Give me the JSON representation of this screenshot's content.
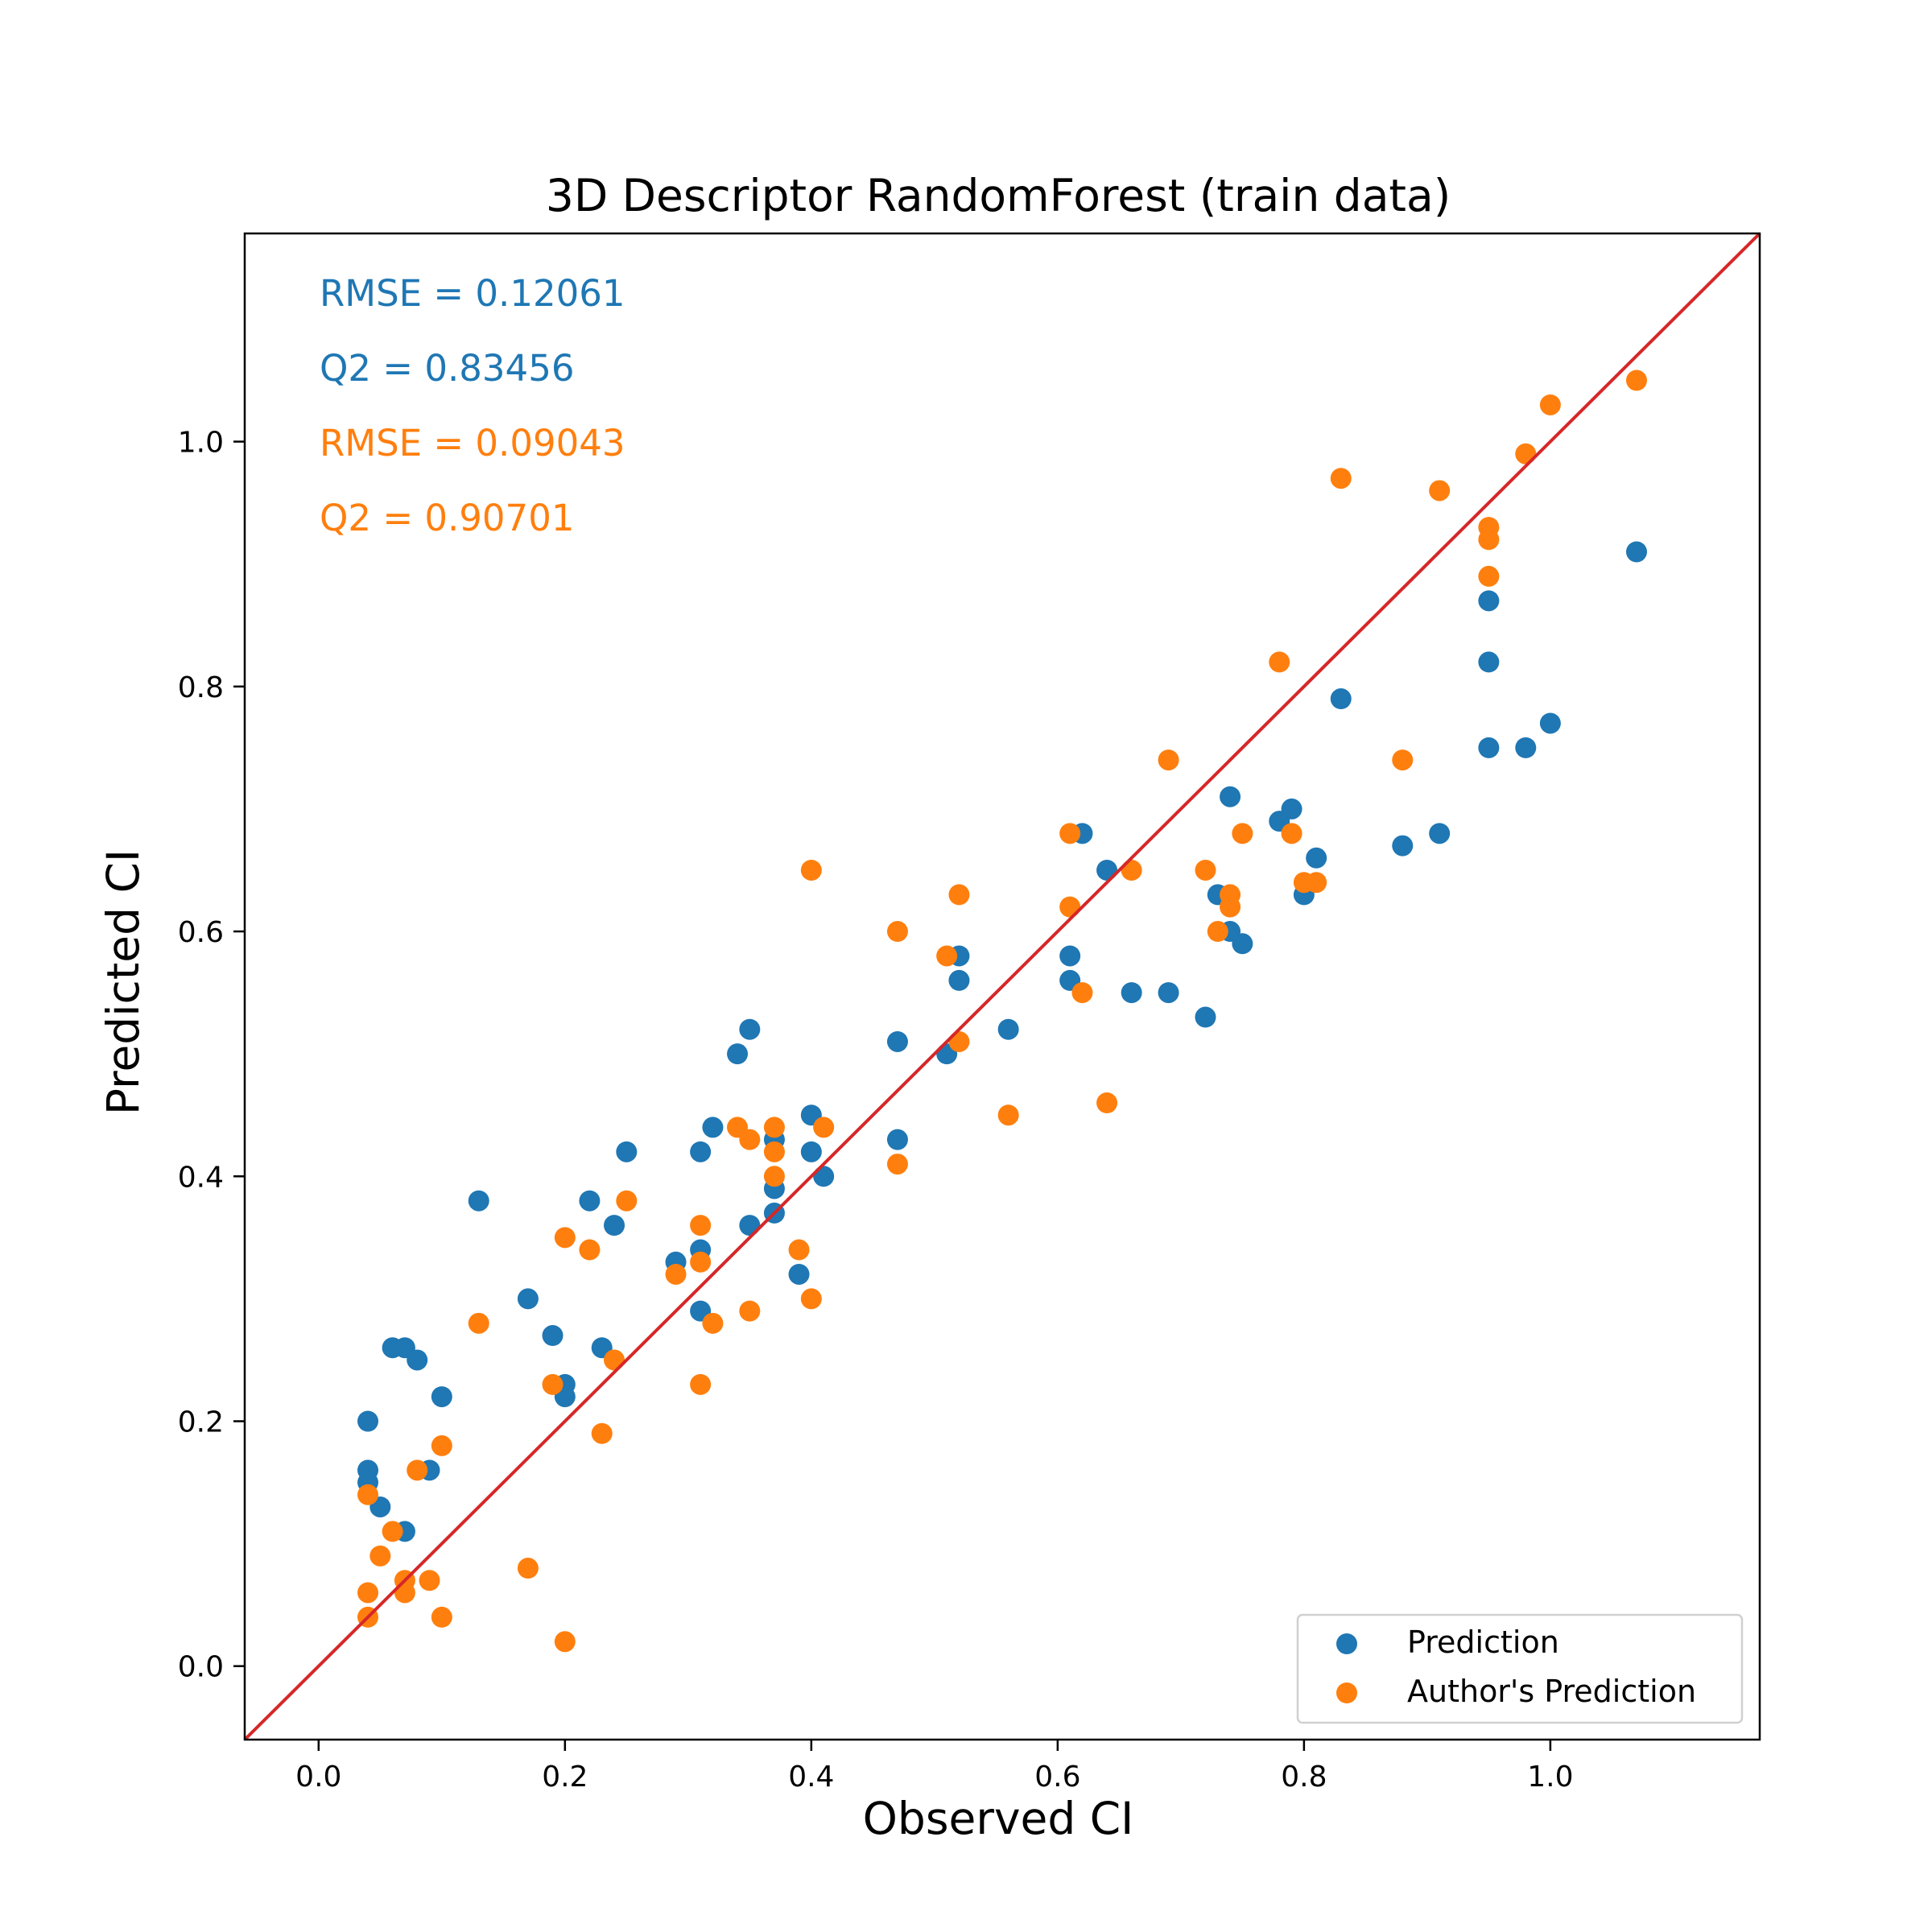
{
  "chart_data": {
    "type": "scatter",
    "title": "3D Descriptor RandomForest (train data)",
    "xlabel": "Observed CI",
    "ylabel": "Predicted CI",
    "xlim": [
      -0.06,
      1.17
    ],
    "ylim": [
      -0.06,
      1.17
    ],
    "x_ticks": [
      0.0,
      0.2,
      0.4,
      0.6,
      0.8,
      1.0
    ],
    "y_ticks": [
      0.0,
      0.2,
      0.4,
      0.6,
      0.8,
      1.0
    ],
    "x_tick_labels": [
      "0.0",
      "0.2",
      "0.4",
      "0.6",
      "0.8",
      "1.0"
    ],
    "y_tick_labels": [
      "0.0",
      "0.2",
      "0.4",
      "0.6",
      "0.8",
      "1.0"
    ],
    "grid": false,
    "legend_position": "bottom-right",
    "reference_line": {
      "slope": 1,
      "intercept": 0,
      "color": "#d62728"
    },
    "annotations": [
      {
        "text": "RMSE = 0.12061",
        "color": "#1f77b4"
      },
      {
        "text": "Q2 = 0.83456",
        "color": "#1f77b4"
      },
      {
        "text": "RMSE = 0.09043",
        "color": "#ff7f0e"
      },
      {
        "text": "Q2 = 0.90701",
        "color": "#ff7f0e"
      }
    ],
    "series": [
      {
        "name": "Prediction",
        "color": "#1f77b4",
        "points": [
          [
            0.04,
            0.2
          ],
          [
            0.04,
            0.16
          ],
          [
            0.04,
            0.15
          ],
          [
            0.05,
            0.13
          ],
          [
            0.06,
            0.26
          ],
          [
            0.07,
            0.26
          ],
          [
            0.07,
            0.11
          ],
          [
            0.08,
            0.25
          ],
          [
            0.09,
            0.16
          ],
          [
            0.1,
            0.22
          ],
          [
            0.13,
            0.38
          ],
          [
            0.17,
            0.3
          ],
          [
            0.19,
            0.27
          ],
          [
            0.2,
            0.23
          ],
          [
            0.2,
            0.22
          ],
          [
            0.22,
            0.38
          ],
          [
            0.23,
            0.26
          ],
          [
            0.24,
            0.36
          ],
          [
            0.25,
            0.42
          ],
          [
            0.29,
            0.33
          ],
          [
            0.31,
            0.42
          ],
          [
            0.31,
            0.34
          ],
          [
            0.31,
            0.29
          ],
          [
            0.32,
            0.44
          ],
          [
            0.34,
            0.5
          ],
          [
            0.35,
            0.52
          ],
          [
            0.35,
            0.36
          ],
          [
            0.37,
            0.43
          ],
          [
            0.37,
            0.39
          ],
          [
            0.37,
            0.37
          ],
          [
            0.39,
            0.32
          ],
          [
            0.4,
            0.45
          ],
          [
            0.4,
            0.42
          ],
          [
            0.41,
            0.4
          ],
          [
            0.47,
            0.51
          ],
          [
            0.47,
            0.43
          ],
          [
            0.51,
            0.5
          ],
          [
            0.52,
            0.58
          ],
          [
            0.52,
            0.56
          ],
          [
            0.56,
            0.52
          ],
          [
            0.61,
            0.58
          ],
          [
            0.61,
            0.56
          ],
          [
            0.62,
            0.68
          ],
          [
            0.64,
            0.65
          ],
          [
            0.66,
            0.55
          ],
          [
            0.69,
            0.55
          ],
          [
            0.72,
            0.53
          ],
          [
            0.73,
            0.63
          ],
          [
            0.74,
            0.71
          ],
          [
            0.74,
            0.6
          ],
          [
            0.75,
            0.59
          ],
          [
            0.78,
            0.69
          ],
          [
            0.79,
            0.7
          ],
          [
            0.8,
            0.63
          ],
          [
            0.81,
            0.66
          ],
          [
            0.83,
            0.79
          ],
          [
            0.88,
            0.67
          ],
          [
            0.91,
            0.68
          ],
          [
            0.95,
            0.87
          ],
          [
            0.95,
            0.82
          ],
          [
            0.95,
            0.75
          ],
          [
            0.98,
            0.75
          ],
          [
            1.0,
            0.77
          ],
          [
            1.07,
            0.91
          ]
        ]
      },
      {
        "name": "Author's Prediction",
        "color": "#ff7f0e",
        "points": [
          [
            0.04,
            0.14
          ],
          [
            0.04,
            0.06
          ],
          [
            0.04,
            0.04
          ],
          [
            0.05,
            0.09
          ],
          [
            0.06,
            0.11
          ],
          [
            0.07,
            0.07
          ],
          [
            0.07,
            0.06
          ],
          [
            0.08,
            0.16
          ],
          [
            0.09,
            0.07
          ],
          [
            0.1,
            0.18
          ],
          [
            0.1,
            0.04
          ],
          [
            0.13,
            0.28
          ],
          [
            0.17,
            0.08
          ],
          [
            0.19,
            0.23
          ],
          [
            0.2,
            0.35
          ],
          [
            0.2,
            0.02
          ],
          [
            0.22,
            0.34
          ],
          [
            0.23,
            0.19
          ],
          [
            0.24,
            0.25
          ],
          [
            0.25,
            0.38
          ],
          [
            0.29,
            0.32
          ],
          [
            0.31,
            0.36
          ],
          [
            0.31,
            0.33
          ],
          [
            0.31,
            0.23
          ],
          [
            0.32,
            0.28
          ],
          [
            0.34,
            0.44
          ],
          [
            0.35,
            0.43
          ],
          [
            0.35,
            0.29
          ],
          [
            0.37,
            0.44
          ],
          [
            0.37,
            0.42
          ],
          [
            0.37,
            0.4
          ],
          [
            0.39,
            0.34
          ],
          [
            0.4,
            0.65
          ],
          [
            0.4,
            0.3
          ],
          [
            0.41,
            0.44
          ],
          [
            0.47,
            0.6
          ],
          [
            0.47,
            0.41
          ],
          [
            0.51,
            0.58
          ],
          [
            0.52,
            0.63
          ],
          [
            0.52,
            0.51
          ],
          [
            0.56,
            0.45
          ],
          [
            0.61,
            0.68
          ],
          [
            0.61,
            0.62
          ],
          [
            0.62,
            0.55
          ],
          [
            0.64,
            0.46
          ],
          [
            0.66,
            0.65
          ],
          [
            0.69,
            0.74
          ],
          [
            0.72,
            0.65
          ],
          [
            0.73,
            0.6
          ],
          [
            0.74,
            0.63
          ],
          [
            0.74,
            0.62
          ],
          [
            0.75,
            0.68
          ],
          [
            0.78,
            0.82
          ],
          [
            0.79,
            0.68
          ],
          [
            0.8,
            0.64
          ],
          [
            0.81,
            0.64
          ],
          [
            0.83,
            0.97
          ],
          [
            0.88,
            0.74
          ],
          [
            0.91,
            0.96
          ],
          [
            0.95,
            0.93
          ],
          [
            0.95,
            0.92
          ],
          [
            0.95,
            0.89
          ],
          [
            0.98,
            0.99
          ],
          [
            1.0,
            1.03
          ],
          [
            1.07,
            1.05
          ]
        ]
      }
    ]
  }
}
